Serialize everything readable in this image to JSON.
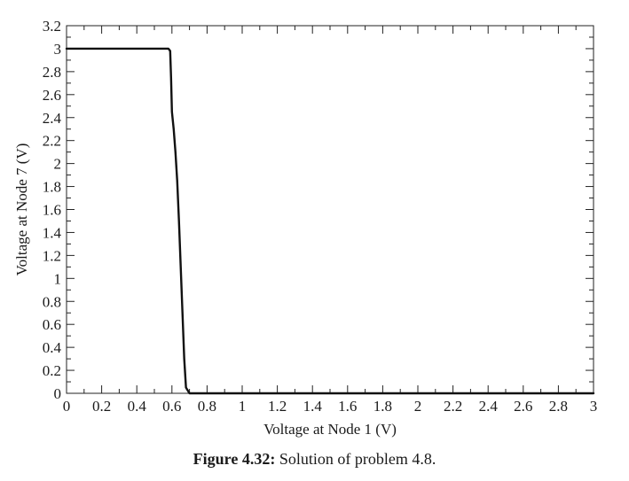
{
  "caption": {
    "label": "Figure 4.32:",
    "text": "Solution of problem 4.8."
  },
  "chart_data": {
    "type": "line",
    "title": "",
    "xlabel": "Voltage at Node 1 (V)",
    "ylabel": "Voltage at Node 7 (V)",
    "xlim": [
      0,
      3
    ],
    "ylim": [
      0,
      3.2
    ],
    "x_ticks": [
      0,
      0.2,
      0.4,
      0.6,
      0.8,
      1,
      1.2,
      1.4,
      1.6,
      1.8,
      2,
      2.2,
      2.4,
      2.6,
      2.8,
      3
    ],
    "x_tick_labels": [
      "0",
      "0.2",
      "0.4",
      "0.6",
      "0.8",
      "1",
      "1.2",
      "1.4",
      "1.6",
      "1.8",
      "2",
      "2.2",
      "2.4",
      "2.6",
      "2.8",
      "3"
    ],
    "y_ticks": [
      0,
      0.2,
      0.4,
      0.6,
      0.8,
      1,
      1.2,
      1.4,
      1.6,
      1.8,
      2,
      2.2,
      2.4,
      2.6,
      2.8,
      3,
      3.2
    ],
    "y_tick_labels": [
      "0",
      "0.2",
      "0.4",
      "0.6",
      "0.8",
      "1",
      "1.2",
      "1.4",
      "1.6",
      "1.8",
      "2",
      "2.2",
      "2.4",
      "2.6",
      "2.8",
      "3",
      "3.2"
    ],
    "grid": false,
    "legend": "none",
    "line_color": "#111111",
    "series": [
      {
        "x": [
          0,
          0.58,
          0.59,
          0.595,
          0.6,
          0.61,
          0.62,
          0.63,
          0.64,
          0.65,
          0.66,
          0.67,
          0.68,
          0.7,
          3.0
        ],
        "y": [
          3.0,
          3.0,
          2.98,
          2.75,
          2.45,
          2.3,
          2.1,
          1.85,
          1.5,
          1.1,
          0.7,
          0.3,
          0.05,
          0.0,
          0.0
        ]
      }
    ]
  }
}
